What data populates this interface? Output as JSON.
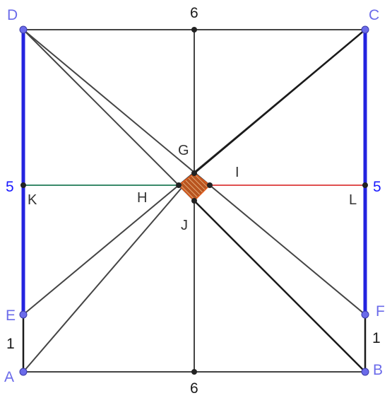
{
  "figure": {
    "type": "geometry-construction",
    "colors": {
      "segment": "#444444",
      "bold_segment": "#1a1a1a",
      "blue_side": "#2323e0",
      "green_segment": "#3a8a6a",
      "red_segment": "#e05050",
      "center_fill": "#b34a1a",
      "center_stroke": "#e05a1a",
      "point_blue": "#6b6bea",
      "point_dark": "#222222"
    },
    "points": {
      "A": "A",
      "B": "B",
      "C": "C",
      "D": "D",
      "E": "E",
      "F": "F",
      "G": "G",
      "H": "H",
      "I": "I",
      "J": "J",
      "K": "K",
      "L": "L"
    },
    "lengths": {
      "top": "6",
      "bottom": "6",
      "left_blue": "5",
      "right_blue": "5",
      "left_small": "1",
      "right_small": "1"
    }
  }
}
